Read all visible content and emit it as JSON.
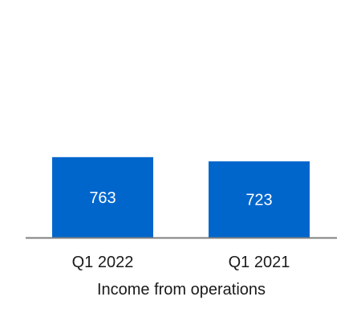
{
  "chart_data": {
    "type": "bar",
    "categories": [
      "Q1 2022",
      "Q1 2021"
    ],
    "values": [
      763,
      723
    ],
    "xlabel": "Income from operations",
    "ylabel": "",
    "ylim": [
      0,
      1000
    ],
    "grid": false,
    "legend": "none",
    "bar_color": "#0066CC",
    "axis_color": "#7f7f7f",
    "data_label_color": "#ffffff"
  }
}
